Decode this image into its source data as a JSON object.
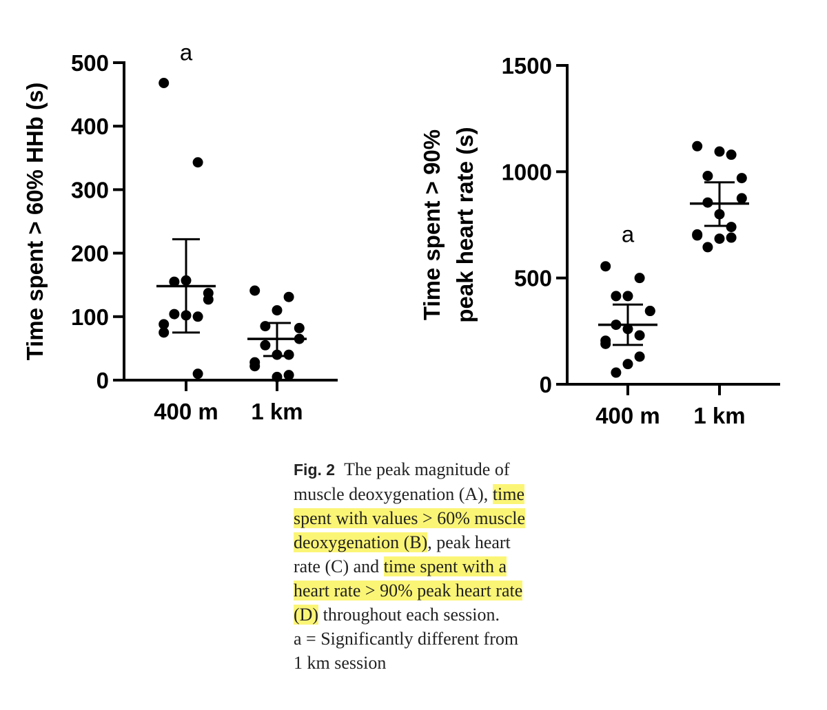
{
  "chart_data": [
    {
      "type": "scatter",
      "ylabel": "Time spent > 60% HHb (s)",
      "xlabel": "",
      "categories": [
        "400 m",
        "1 km"
      ],
      "ylim": [
        0,
        500
      ],
      "yticks": [
        0,
        100,
        200,
        300,
        400,
        500
      ],
      "grid": false,
      "groups": [
        {
          "category": "400 m",
          "points": [
            468,
            343,
            157,
            155,
            137,
            127,
            104,
            102,
            100,
            88,
            75,
            10
          ],
          "mean": 148,
          "error_low": 75,
          "error_high": 222,
          "annotation": "a"
        },
        {
          "category": "1 km",
          "points": [
            141,
            131,
            110,
            85,
            82,
            65,
            55,
            40,
            40,
            28,
            22,
            8,
            5
          ],
          "mean": 65,
          "error_low": 38,
          "error_high": 90,
          "annotation": ""
        }
      ]
    },
    {
      "type": "scatter",
      "ylabel_lines": [
        "Time spent > 90%",
        "peak heart rate (s)"
      ],
      "xlabel": "",
      "categories": [
        "400 m",
        "1 km"
      ],
      "ylim": [
        0,
        1500
      ],
      "yticks": [
        0,
        500,
        1000,
        1500
      ],
      "grid": false,
      "groups": [
        {
          "category": "400 m",
          "points": [
            555,
            500,
            415,
            415,
            345,
            345,
            280,
            260,
            230,
            205,
            190,
            130,
            95,
            55
          ],
          "mean": 280,
          "error_low": 185,
          "error_high": 375,
          "annotation": "a"
        },
        {
          "category": "1 km",
          "points": [
            1120,
            1080,
            1095,
            980,
            970,
            875,
            855,
            800,
            740,
            705,
            700,
            690,
            685,
            645
          ],
          "mean": 850,
          "error_low": 745,
          "error_high": 950,
          "annotation": ""
        }
      ]
    }
  ],
  "caption": {
    "label": "Fig. 2",
    "lines": [
      [
        {
          "t": "The peak magnitude of",
          "hl": false
        }
      ],
      [
        {
          "t": "muscle deoxygenation (A), ",
          "hl": false
        },
        {
          "t": "time",
          "hl": true
        }
      ],
      [
        {
          "t": "spent with values > 60% muscle",
          "hl": true
        }
      ],
      [
        {
          "t": "deoxygenation (B)",
          "hl": true
        },
        {
          "t": ", peak heart",
          "hl": false
        }
      ],
      [
        {
          "t": "rate (C) and ",
          "hl": false
        },
        {
          "t": "time spent with a",
          "hl": true
        }
      ],
      [
        {
          "t": "heart rate > 90% peak heart rate",
          "hl": true
        }
      ],
      [
        {
          "t": "(D)",
          "hl": true
        },
        {
          "t": " throughout each session.",
          "hl": false
        }
      ],
      [
        {
          "t": "a = Significantly different from",
          "hl": false
        }
      ],
      [
        {
          "t": "1 km session",
          "hl": false
        }
      ]
    ]
  },
  "colors": {
    "ink": "#000000",
    "highlight": "#fbf576",
    "caption_text": "#222222"
  }
}
